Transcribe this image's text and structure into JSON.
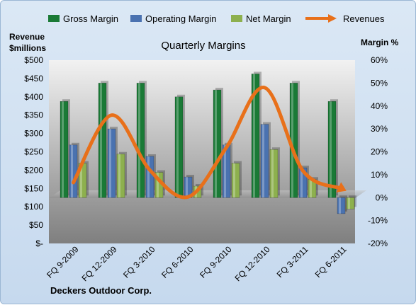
{
  "chart_data": {
    "type": "bar",
    "title": "Quarterly Margins",
    "company": "Deckers Outdoor Corp.",
    "left_axis_label_line1": "Revenue",
    "left_axis_label_line2": "$millions",
    "right_axis_label": "Margin %",
    "left_ylim": [
      0,
      500
    ],
    "right_ylim": [
      -20,
      60
    ],
    "left_ticks": [
      "$-",
      "$50",
      "$100",
      "$150",
      "$200",
      "$250",
      "$300",
      "$350",
      "$400",
      "$450",
      "$500"
    ],
    "right_ticks": [
      "-20%",
      "-10%",
      "0%",
      "10%",
      "20%",
      "30%",
      "40%",
      "50%",
      "60%"
    ],
    "categories": [
      "FQ 9-2009",
      "FQ 12-2009",
      "FQ 3-2010",
      "FQ 6-2010",
      "FQ 9-2010",
      "FQ 12-2010",
      "FQ 3-2011",
      "FQ 6-2011"
    ],
    "series": [
      {
        "name": "Gross Margin",
        "axis": "right",
        "color": "#1a7a36",
        "values": [
          42,
          50,
          50,
          44,
          47,
          54,
          50,
          42
        ]
      },
      {
        "name": "Operating Margin",
        "axis": "right",
        "color": "#4a72b0",
        "values": [
          23,
          30,
          18,
          9,
          23,
          32,
          13,
          -7
        ]
      },
      {
        "name": "Net Margin",
        "axis": "right",
        "color": "#8db04e",
        "values": [
          15,
          19,
          11,
          5,
          15,
          21,
          8,
          -5
        ]
      }
    ],
    "line_series": {
      "name": "Revenues",
      "axis": "left",
      "color": "#e8701a",
      "values": [
        166,
        350,
        200,
        127,
        262,
        425,
        198,
        150
      ]
    },
    "legend_position": "top",
    "grid": false
  }
}
